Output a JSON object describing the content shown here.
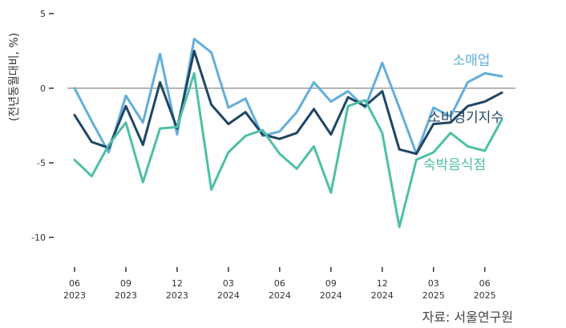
{
  "chart_data": {
    "type": "line",
    "ylabel": "(전년동월대비, %)",
    "yticks": [
      5,
      0,
      -5,
      -10
    ],
    "ylim": [
      -10,
      5
    ],
    "xticks": [
      {
        "month": "06",
        "year": "2023",
        "index": 0
      },
      {
        "month": "09",
        "year": "2023",
        "index": 3
      },
      {
        "month": "12",
        "year": "2023",
        "index": 6
      },
      {
        "month": "03",
        "year": "2024",
        "index": 9
      },
      {
        "month": "06",
        "year": "2024",
        "index": 12
      },
      {
        "month": "09",
        "year": "2024",
        "index": 15
      },
      {
        "month": "12",
        "year": "2024",
        "index": 18
      },
      {
        "month": "03",
        "year": "2025",
        "index": 21
      },
      {
        "month": "06",
        "year": "2025",
        "index": 24
      }
    ],
    "x": [
      "2023-06",
      "2023-07",
      "2023-08",
      "2023-09",
      "2023-10",
      "2023-11",
      "2023-12",
      "2024-01",
      "2024-02",
      "2024-03",
      "2024-04",
      "2024-05",
      "2024-06",
      "2024-07",
      "2024-08",
      "2024-09",
      "2024-10",
      "2024-11",
      "2024-12",
      "2025-01",
      "2025-02",
      "2025-03",
      "2025-04",
      "2025-05",
      "2025-06",
      "2025-07"
    ],
    "series": [
      {
        "name": "소매업",
        "color": "#62aedb",
        "values": [
          0.0,
          -2.2,
          -4.3,
          -0.5,
          -2.3,
          2.3,
          -3.1,
          3.3,
          2.4,
          -1.3,
          -0.7,
          -3.2,
          -2.9,
          -1.6,
          0.4,
          -0.9,
          -0.2,
          -1.3,
          1.7,
          -1.3,
          -4.4,
          -1.3,
          -1.9,
          0.4,
          1.0,
          0.8
        ]
      },
      {
        "name": "소비경기지수",
        "color": "#1f4564",
        "values": [
          -1.8,
          -3.6,
          -4.0,
          -1.2,
          -3.8,
          0.4,
          -2.7,
          2.5,
          -1.1,
          -2.4,
          -1.6,
          -3.1,
          -3.4,
          -3.0,
          -1.4,
          -3.1,
          -0.6,
          -1.2,
          -0.2,
          -4.1,
          -4.4,
          -2.4,
          -2.3,
          -1.2,
          -0.9,
          -0.3
        ]
      },
      {
        "name": "숙박음식점",
        "color": "#4ec0a6",
        "values": [
          -4.8,
          -5.9,
          -3.8,
          -2.3,
          -6.3,
          -2.7,
          -2.6,
          1.0,
          -6.8,
          -4.3,
          -3.2,
          -2.8,
          -4.4,
          -5.4,
          -3.9,
          -7.0,
          -1.2,
          -0.8,
          -3.0,
          -9.3,
          -4.8,
          -4.3,
          -3.0,
          -3.9,
          -4.2,
          -2.1
        ]
      }
    ]
  },
  "source_text": "자료: 서울연구원"
}
